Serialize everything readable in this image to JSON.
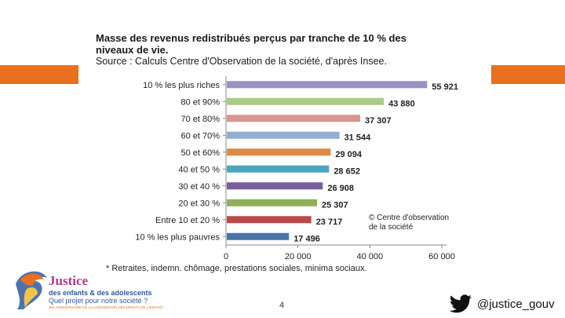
{
  "title_line1": "Masse des revenus redistribués perçus par tranche de 10 % des niveaux de vie.",
  "title_line2": "Source : Calculs Centre d'Observation de la société, d'après Insee.",
  "footnote": "* Retraites, indemn. chômage, prestations sociales, minima sociaux.",
  "copyright_line1": "© Centre d'observation",
  "copyright_line2": "de la société",
  "logo": {
    "title": "Justice",
    "subtitle1": "des enfants & des adolescents",
    "subtitle2": "Quel projet pour notre société ?",
    "subtitle3": "30e ANNIVERSAIRE DE LA CONVENTION DES DROITS DE L'ENFANT"
  },
  "page_number": "4",
  "twitter_handle": "@justice_gouv",
  "colors": {
    "accent_orange": "#e8701f"
  },
  "chart_data": {
    "type": "bar",
    "orientation": "horizontal",
    "title": "Masse des revenus redistribués perçus par tranche de 10 % des niveaux de vie.",
    "categories": [
      "10 % les plus riches",
      "80 et 90%",
      "70 et 80%",
      "60 et 70%",
      "50 et 60%",
      "40 et 50 %",
      "30 et 40 %",
      "20 et 30 %",
      "Entre 10 et 20 %",
      "10 % les plus pauvres"
    ],
    "values": [
      55921,
      43880,
      37307,
      31544,
      29094,
      28652,
      26908,
      25307,
      23717,
      17496
    ],
    "value_labels": [
      "55 921",
      "43 880",
      "37 307",
      "31 544",
      "29 094",
      "28 652",
      "26 908",
      "25 307",
      "23 717",
      "17 496"
    ],
    "colors": [
      "#9b8fc4",
      "#a9cc86",
      "#d9958f",
      "#92aed6",
      "#dd8a47",
      "#4aa6bd",
      "#7a5d9e",
      "#8fb05a",
      "#b94a48",
      "#4a73a8"
    ],
    "xlim": [
      0,
      60000
    ],
    "xticks": [
      0,
      20000,
      40000,
      60000
    ],
    "xtick_labels": [
      "0",
      "20 000",
      "40 000",
      "60 000"
    ],
    "xlabel": "",
    "ylabel": ""
  }
}
